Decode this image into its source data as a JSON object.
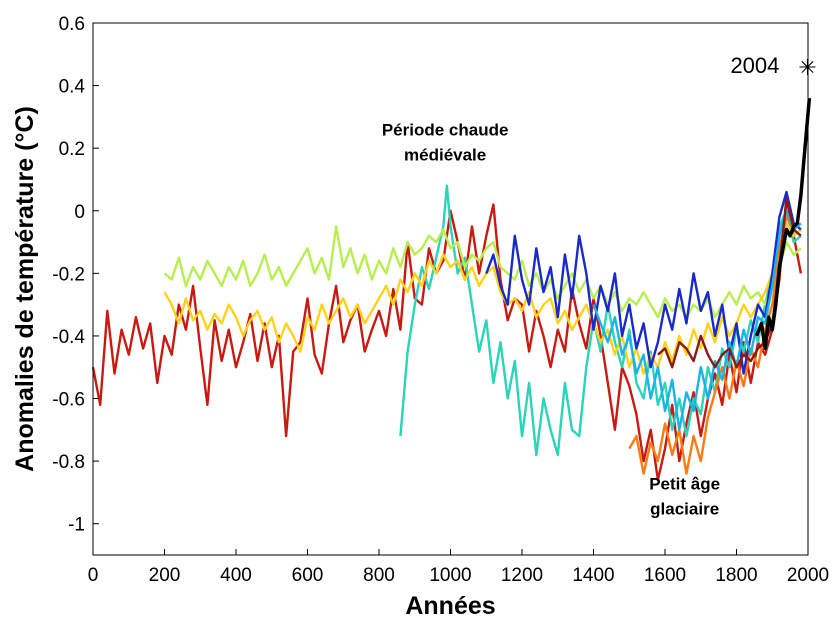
{
  "chart_data": {
    "type": "line",
    "title": "",
    "xlabel": "Années",
    "ylabel": "Anomalies de température (°C)",
    "xlim": [
      0,
      2000
    ],
    "ylim": [
      -1.1,
      0.6
    ],
    "xticks": [
      0,
      200,
      400,
      600,
      800,
      1000,
      1200,
      1400,
      1600,
      1800,
      2000
    ],
    "yticks": [
      -1,
      -0.8,
      -0.6,
      -0.4,
      -0.2,
      0,
      0.2,
      0.4,
      0.6
    ],
    "grid": false,
    "annotations": [
      {
        "text": "Période chaude",
        "x": 985,
        "y": 0.24
      },
      {
        "text": "médiévale",
        "x": 985,
        "y": 0.16
      },
      {
        "text": "Petit âge",
        "x": 1655,
        "y": -0.89
      },
      {
        "text": "glaciaire",
        "x": 1655,
        "y": -0.97
      },
      {
        "text": "2004",
        "x": 1920,
        "y": 0.44,
        "marker": "asterisk",
        "marker_x": 2004,
        "marker_y": 0.44
      }
    ],
    "series": [
      {
        "color": "#c81a10",
        "x": [
          0,
          20,
          40,
          60,
          80,
          100,
          120,
          140,
          160,
          180,
          200,
          220,
          240,
          260,
          280,
          300,
          320,
          340,
          360,
          380,
          400,
          420,
          440,
          460,
          480,
          500,
          520,
          540,
          560,
          580,
          600,
          620,
          640,
          660,
          680,
          700,
          720,
          740,
          760,
          780,
          800,
          820,
          840,
          860,
          880,
          900,
          920,
          940,
          960,
          980,
          1000,
          1020,
          1040,
          1060,
          1080,
          1100,
          1120,
          1140,
          1160,
          1180,
          1200,
          1220,
          1240,
          1260,
          1280,
          1300,
          1320,
          1340,
          1360,
          1380,
          1400,
          1420,
          1440,
          1460,
          1480,
          1500,
          1520,
          1540,
          1560,
          1580,
          1600,
          1620,
          1640,
          1660,
          1680,
          1700,
          1720,
          1740,
          1760,
          1780,
          1800,
          1820,
          1840,
          1860,
          1880,
          1900,
          1920,
          1940,
          1960,
          1980
        ],
        "y": [
          -0.5,
          -0.62,
          -0.32,
          -0.52,
          -0.38,
          -0.46,
          -0.34,
          -0.44,
          -0.36,
          -0.55,
          -0.4,
          -0.46,
          -0.3,
          -0.38,
          -0.24,
          -0.44,
          -0.62,
          -0.35,
          -0.48,
          -0.38,
          -0.5,
          -0.42,
          -0.33,
          -0.48,
          -0.36,
          -0.5,
          -0.4,
          -0.72,
          -0.45,
          -0.42,
          -0.28,
          -0.46,
          -0.52,
          -0.36,
          -0.24,
          -0.42,
          -0.35,
          -0.3,
          -0.45,
          -0.38,
          -0.32,
          -0.4,
          -0.25,
          -0.38,
          -0.1,
          -0.28,
          -0.3,
          -0.12,
          -0.2,
          -0.16,
          0.0,
          -0.1,
          -0.22,
          -0.05,
          -0.2,
          -0.08,
          0.02,
          -0.22,
          -0.35,
          -0.28,
          -0.3,
          -0.45,
          -0.32,
          -0.4,
          -0.5,
          -0.38,
          -0.45,
          -0.25,
          -0.36,
          -0.44,
          -0.28,
          -0.4,
          -0.55,
          -0.7,
          -0.5,
          -0.56,
          -0.65,
          -0.8,
          -0.7,
          -0.86,
          -0.76,
          -0.62,
          -0.8,
          -0.68,
          -0.58,
          -0.72,
          -0.6,
          -0.52,
          -0.62,
          -0.46,
          -0.58,
          -0.42,
          -0.55,
          -0.42,
          -0.46,
          -0.38,
          -0.22,
          0.04,
          -0.08,
          -0.2
        ]
      },
      {
        "color": "#2ad4b8",
        "x": [
          860,
          880,
          900,
          920,
          940,
          960,
          980,
          990,
          1000,
          1020,
          1040,
          1060,
          1080,
          1100,
          1120,
          1140,
          1160,
          1180,
          1200,
          1220,
          1240,
          1260,
          1280,
          1300,
          1320,
          1340,
          1360,
          1380,
          1400,
          1420,
          1440,
          1460,
          1480,
          1500,
          1520,
          1540,
          1560,
          1580,
          1600,
          1620,
          1640,
          1660,
          1680,
          1700,
          1720,
          1740,
          1760,
          1780,
          1800,
          1820,
          1840,
          1860,
          1880,
          1900,
          1920,
          1940,
          1960,
          1980
        ],
        "y": [
          -0.72,
          -0.45,
          -0.3,
          -0.18,
          -0.25,
          -0.15,
          -0.05,
          0.08,
          -0.05,
          -0.2,
          -0.15,
          -0.3,
          -0.45,
          -0.35,
          -0.55,
          -0.42,
          -0.6,
          -0.48,
          -0.72,
          -0.55,
          -0.78,
          -0.6,
          -0.7,
          -0.78,
          -0.55,
          -0.7,
          -0.72,
          -0.5,
          -0.35,
          -0.45,
          -0.3,
          -0.42,
          -0.5,
          -0.38,
          -0.55,
          -0.6,
          -0.45,
          -0.62,
          -0.55,
          -0.7,
          -0.6,
          -0.72,
          -0.6,
          -0.65,
          -0.5,
          -0.58,
          -0.44,
          -0.5,
          -0.38,
          -0.45,
          -0.35,
          -0.42,
          -0.3,
          -0.2,
          -0.05,
          0.0,
          -0.1,
          -0.08
        ]
      },
      {
        "color": "#b8ee4e",
        "x": [
          200,
          220,
          240,
          260,
          280,
          300,
          320,
          340,
          360,
          380,
          400,
          420,
          440,
          460,
          480,
          500,
          520,
          540,
          560,
          580,
          600,
          620,
          640,
          660,
          680,
          700,
          720,
          740,
          760,
          780,
          800,
          820,
          840,
          860,
          880,
          900,
          920,
          940,
          960,
          980,
          1000,
          1020,
          1040,
          1060,
          1080,
          1100,
          1120,
          1140,
          1160,
          1180,
          1200,
          1220,
          1240,
          1260,
          1280,
          1300,
          1320,
          1340,
          1360,
          1380,
          1400,
          1420,
          1440,
          1460,
          1480,
          1500,
          1520,
          1540,
          1560,
          1580,
          1600,
          1620,
          1640,
          1660,
          1680,
          1700,
          1720,
          1740,
          1760,
          1780,
          1800,
          1820,
          1840,
          1860,
          1880,
          1900,
          1920,
          1940,
          1960,
          1980
        ],
        "y": [
          -0.2,
          -0.22,
          -0.15,
          -0.24,
          -0.18,
          -0.22,
          -0.16,
          -0.2,
          -0.24,
          -0.18,
          -0.22,
          -0.16,
          -0.24,
          -0.2,
          -0.14,
          -0.22,
          -0.18,
          -0.24,
          -0.2,
          -0.16,
          -0.12,
          -0.2,
          -0.15,
          -0.22,
          -0.05,
          -0.18,
          -0.12,
          -0.2,
          -0.14,
          -0.22,
          -0.16,
          -0.2,
          -0.12,
          -0.18,
          -0.1,
          -0.14,
          -0.12,
          -0.08,
          -0.1,
          -0.06,
          -0.12,
          -0.1,
          -0.18,
          -0.14,
          -0.16,
          -0.12,
          -0.1,
          -0.18,
          -0.2,
          -0.22,
          -0.16,
          -0.24,
          -0.2,
          -0.26,
          -0.22,
          -0.28,
          -0.24,
          -0.2,
          -0.26,
          -0.22,
          -0.28,
          -0.24,
          -0.3,
          -0.26,
          -0.32,
          -0.28,
          -0.3,
          -0.26,
          -0.3,
          -0.34,
          -0.28,
          -0.32,
          -0.3,
          -0.34,
          -0.3,
          -0.32,
          -0.28,
          -0.34,
          -0.3,
          -0.26,
          -0.3,
          -0.24,
          -0.28,
          -0.26,
          -0.3,
          -0.24,
          -0.18,
          -0.1,
          -0.14,
          -0.12
        ]
      },
      {
        "color": "#ffd21a",
        "x": [
          200,
          220,
          240,
          260,
          280,
          300,
          320,
          340,
          360,
          380,
          400,
          420,
          440,
          460,
          480,
          500,
          520,
          540,
          560,
          580,
          600,
          620,
          640,
          660,
          680,
          700,
          720,
          740,
          760,
          780,
          800,
          820,
          840,
          860,
          880,
          900,
          920,
          940,
          960,
          980,
          1000,
          1020,
          1040,
          1060,
          1080,
          1100,
          1120,
          1140,
          1160,
          1180,
          1200,
          1220,
          1240,
          1260,
          1280,
          1300,
          1320,
          1340,
          1360,
          1380,
          1400,
          1420,
          1440,
          1460,
          1480,
          1500,
          1520,
          1540,
          1560,
          1580,
          1600,
          1620,
          1640,
          1660,
          1680,
          1700,
          1720,
          1740,
          1760,
          1780,
          1800,
          1820,
          1840,
          1860,
          1880,
          1900,
          1920,
          1940,
          1960,
          1980
        ],
        "y": [
          -0.26,
          -0.3,
          -0.36,
          -0.28,
          -0.35,
          -0.32,
          -0.38,
          -0.33,
          -0.36,
          -0.3,
          -0.34,
          -0.4,
          -0.35,
          -0.32,
          -0.38,
          -0.34,
          -0.42,
          -0.36,
          -0.4,
          -0.45,
          -0.34,
          -0.38,
          -0.3,
          -0.36,
          -0.32,
          -0.28,
          -0.34,
          -0.3,
          -0.36,
          -0.32,
          -0.28,
          -0.24,
          -0.3,
          -0.22,
          -0.26,
          -0.2,
          -0.24,
          -0.16,
          -0.2,
          -0.14,
          -0.18,
          -0.16,
          -0.22,
          -0.18,
          -0.24,
          -0.2,
          -0.18,
          -0.26,
          -0.3,
          -0.28,
          -0.32,
          -0.26,
          -0.34,
          -0.3,
          -0.28,
          -0.36,
          -0.32,
          -0.38,
          -0.34,
          -0.3,
          -0.36,
          -0.42,
          -0.38,
          -0.46,
          -0.4,
          -0.5,
          -0.44,
          -0.52,
          -0.46,
          -0.5,
          -0.42,
          -0.48,
          -0.4,
          -0.46,
          -0.38,
          -0.44,
          -0.36,
          -0.42,
          -0.34,
          -0.4,
          -0.36,
          -0.3,
          -0.34,
          -0.3,
          -0.26,
          -0.2,
          -0.12,
          -0.04,
          -0.08,
          -0.06
        ]
      },
      {
        "color": "#1a2ac8",
        "x": [
          1100,
          1120,
          1140,
          1160,
          1180,
          1200,
          1220,
          1240,
          1260,
          1280,
          1300,
          1320,
          1340,
          1360,
          1380,
          1400,
          1420,
          1440,
          1460,
          1480,
          1500,
          1520,
          1540,
          1560,
          1580,
          1600,
          1620,
          1640,
          1660,
          1680,
          1700,
          1720,
          1740,
          1760,
          1780,
          1800,
          1820,
          1840,
          1860,
          1880,
          1900,
          1920,
          1940,
          1960,
          1980
        ],
        "y": [
          -0.2,
          -0.14,
          -0.24,
          -0.3,
          -0.08,
          -0.22,
          -0.3,
          -0.12,
          -0.26,
          -0.18,
          -0.34,
          -0.14,
          -0.28,
          -0.08,
          -0.2,
          -0.38,
          -0.24,
          -0.32,
          -0.2,
          -0.4,
          -0.3,
          -0.44,
          -0.36,
          -0.5,
          -0.42,
          -0.3,
          -0.38,
          -0.25,
          -0.36,
          -0.2,
          -0.32,
          -0.26,
          -0.4,
          -0.3,
          -0.46,
          -0.36,
          -0.52,
          -0.4,
          -0.3,
          -0.34,
          -0.2,
          -0.02,
          0.06,
          -0.04,
          -0.06
        ]
      },
      {
        "color": "#ff7a10",
        "x": [
          1500,
          1520,
          1540,
          1560,
          1580,
          1600,
          1620,
          1640,
          1660,
          1680,
          1700,
          1720,
          1740,
          1760,
          1780,
          1800,
          1820,
          1840,
          1860,
          1880,
          1900,
          1920,
          1940,
          1960,
          1980
        ],
        "y": [
          -0.76,
          -0.72,
          -0.84,
          -0.74,
          -0.8,
          -0.68,
          -0.78,
          -0.7,
          -0.84,
          -0.72,
          -0.8,
          -0.66,
          -0.58,
          -0.5,
          -0.6,
          -0.48,
          -0.56,
          -0.44,
          -0.5,
          -0.38,
          -0.3,
          -0.12,
          -0.02,
          -0.06,
          -0.04
        ]
      },
      {
        "color": "#18b4e8",
        "x": [
          1400,
          1420,
          1440,
          1460,
          1480,
          1500,
          1520,
          1540,
          1560,
          1580,
          1600,
          1620,
          1640,
          1660,
          1680,
          1700,
          1720,
          1740,
          1760,
          1780,
          1800,
          1820,
          1840,
          1860,
          1880,
          1900,
          1920,
          1940,
          1960,
          1980
        ],
        "y": [
          -0.3,
          -0.36,
          -0.42,
          -0.34,
          -0.46,
          -0.4,
          -0.52,
          -0.46,
          -0.6,
          -0.5,
          -0.64,
          -0.54,
          -0.7,
          -0.58,
          -0.64,
          -0.5,
          -0.6,
          -0.48,
          -0.54,
          -0.42,
          -0.5,
          -0.38,
          -0.46,
          -0.34,
          -0.36,
          -0.24,
          -0.08,
          0.0,
          -0.06,
          -0.04
        ]
      },
      {
        "color": "#8a1a14",
        "x": [
          1580,
          1600,
          1620,
          1640,
          1660,
          1680,
          1700,
          1720,
          1740,
          1760,
          1780,
          1800,
          1820,
          1840,
          1860,
          1880,
          1900,
          1920,
          1940,
          1960,
          1980
        ],
        "y": [
          -0.46,
          -0.44,
          -0.5,
          -0.42,
          -0.44,
          -0.48,
          -0.4,
          -0.46,
          -0.5,
          -0.46,
          -0.44,
          -0.5,
          -0.46,
          -0.48,
          -0.44,
          -0.42,
          -0.36,
          -0.18,
          0.04,
          -0.06,
          -0.08
        ]
      },
      {
        "color": "#000000",
        "x": [
          1856,
          1870,
          1880,
          1890,
          1900,
          1910,
          1920,
          1930,
          1940,
          1950,
          1960,
          1970,
          1980,
          1990,
          2004
        ],
        "y": [
          -0.4,
          -0.36,
          -0.44,
          -0.34,
          -0.38,
          -0.3,
          -0.18,
          -0.12,
          -0.06,
          -0.08,
          -0.05,
          -0.04,
          0.05,
          0.18,
          0.36
        ],
        "stroke_width": 3.5
      }
    ]
  }
}
